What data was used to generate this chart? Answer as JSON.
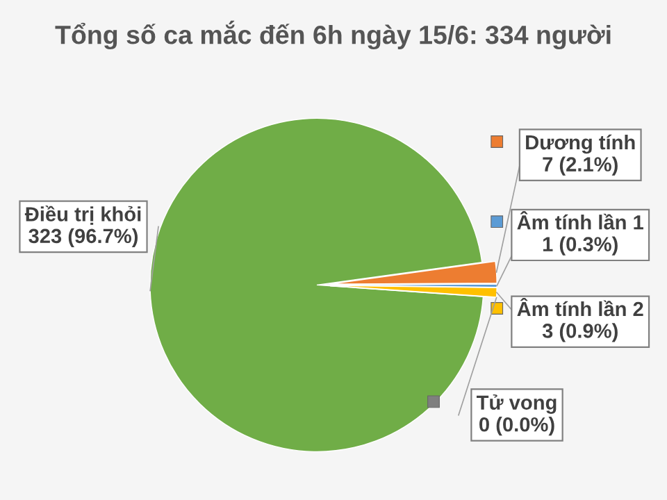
{
  "chart_data": {
    "type": "pie",
    "title": "Tổng số ca mắc đến 6h ngày 15/6: 334 người",
    "categories": [
      "Điều trị khỏi",
      "Dương tính",
      "Âm tính lần 1",
      "Âm tính lần 2",
      "Tử vong"
    ],
    "values": [
      323,
      7,
      1,
      3,
      0
    ],
    "value_labels": [
      "323 (96.7%)",
      "7 (2.1%)",
      "1 (0.3%)",
      "3 (0.9%)",
      "0 (0.0%)"
    ],
    "colors": [
      "#70ad47",
      "#ed7d31",
      "#5b9bd5",
      "#ffc000",
      "#7f7f7f"
    ],
    "legend": "right"
  }
}
